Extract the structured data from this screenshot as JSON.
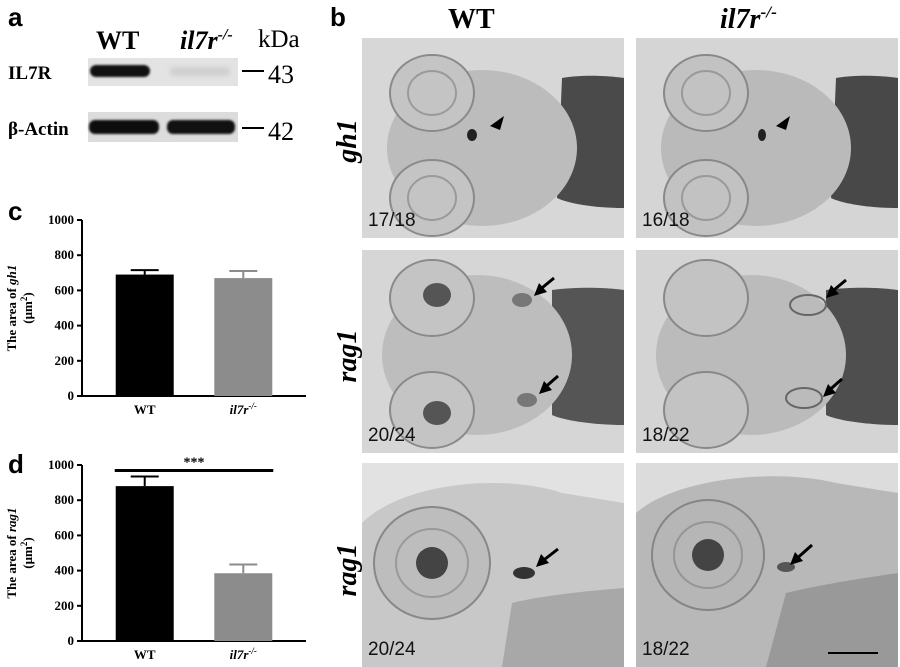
{
  "panel_a": {
    "label": "a",
    "col_wt": "WT",
    "col_mut_base": "il7r",
    "col_mut_sup": "-/-",
    "unit": "kDa",
    "rows": [
      {
        "name": "IL7R",
        "mw": "43"
      },
      {
        "name": "β-Actin",
        "mw": "42"
      }
    ]
  },
  "panel_b": {
    "label": "b",
    "col_wt": "WT",
    "col_mut_base": "il7r",
    "col_mut_sup": "-/-",
    "row_labels": [
      "gh1",
      "rag1",
      "rag1"
    ],
    "counts": [
      "17/18",
      "16/18",
      "20/24",
      "18/22",
      "20/24",
      "18/22"
    ]
  },
  "chart_data": [
    {
      "panel": "c",
      "type": "bar",
      "categories": [
        "WT",
        "il7r-/-"
      ],
      "values": [
        690,
        670
      ],
      "errors": [
        25,
        40
      ],
      "ylabel": "The area of gh1 (μm2)",
      "ylim": [
        0,
        1000
      ],
      "yticks": [
        "0",
        "200",
        "400",
        "600",
        "800",
        "1000"
      ],
      "colors": [
        "#000000",
        "#8c8c8c"
      ]
    },
    {
      "panel": "d",
      "type": "bar",
      "categories": [
        "WT",
        "il7r-/-"
      ],
      "values": [
        880,
        385
      ],
      "errors": [
        55,
        50
      ],
      "ylabel": "The area of rag1 (μm2)",
      "ylim": [
        0,
        1000
      ],
      "yticks": [
        "0",
        "200",
        "400",
        "600",
        "800",
        "1000"
      ],
      "significance": "***",
      "colors": [
        "#000000",
        "#8c8c8c"
      ]
    }
  ]
}
